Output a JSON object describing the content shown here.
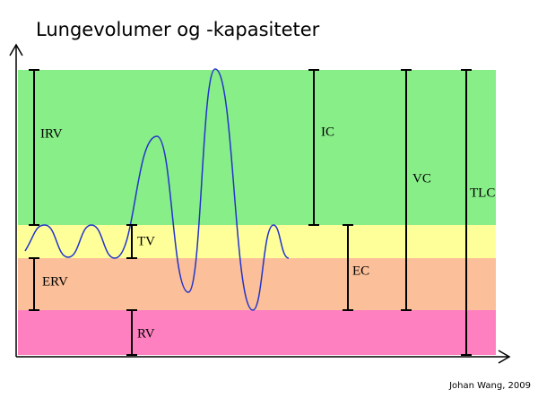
{
  "title": "Lungevolumer og -kapasiteter",
  "labels": {
    "irv": "IRV",
    "erv": "ERV",
    "tv": "TV",
    "rv": "RV",
    "ic": "IC",
    "ec": "EC",
    "vc": "VC",
    "tlc": "TLC"
  },
  "credit": "Johan Wang, 2009"
}
